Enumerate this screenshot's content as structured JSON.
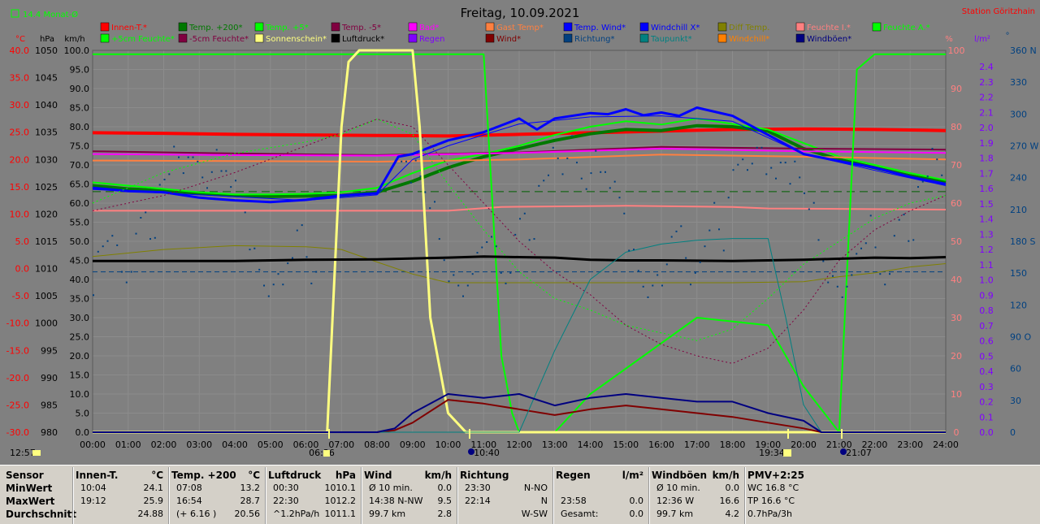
{
  "title": "Freitag, 10.09.2021",
  "station": "Station Göritzhain",
  "topleft": "14.4 Monat-Ø",
  "colors": {
    "innen": "#ff0000",
    "t200": "#007800",
    "t5": "#00ff00",
    "tm5": "#800040",
    "bad": "#ff00ff",
    "gast": "#ff8040",
    "tempwind": "#0000ff",
    "windchillx": "#0000ff",
    "difftemp": "#808000",
    "feuchtei": "#ff8080",
    "feuchtea": "#00ff00",
    "f5": "#00ff00",
    "fm5": "#800040",
    "sonne": "#ffff80",
    "luft": "#000000",
    "regen": "#8000ff",
    "wind": "#800000",
    "richtung": "#004080",
    "taupunkt": "#008080",
    "windchill": "#ff8000",
    "windboeen": "#000080"
  },
  "legend": [
    {
      "label": "Innen-T.*",
      "color": "#ff0000"
    },
    {
      "label": "Temp. +200*",
      "color": "#007800"
    },
    {
      "label": "Temp. +5*",
      "color": "#00ff00"
    },
    {
      "label": "Temp. -5*",
      "color": "#800040"
    },
    {
      "label": "Bad*",
      "color": "#ff00ff"
    },
    {
      "label": "Gast Temp*",
      "color": "#ff8040"
    },
    {
      "label": "Temp. Wind*",
      "color": "#0000ff"
    },
    {
      "label": "Windchill X*",
      "color": "#0000ff"
    },
    {
      "label": "Diff Temp.",
      "color": "#808000"
    },
    {
      "label": "Feuchte I.*",
      "color": "#ff8080"
    },
    {
      "label": "Feuchte A.*",
      "color": "#00ff00"
    },
    {
      "label": "+5cm Feuchte*",
      "color": "#00ff00"
    },
    {
      "label": "-5cm Feuchte*",
      "color": "#800040"
    },
    {
      "label": "Sonnenschein*",
      "color": "#ffff80"
    },
    {
      "label": "Luftdruck*",
      "color": "#000000"
    },
    {
      "label": "Regen",
      "color": "#8000ff"
    },
    {
      "label": "Wind*",
      "color": "#800000"
    },
    {
      "label": "Richtung*",
      "color": "#004080"
    },
    {
      "label": "Taupunkt*",
      "color": "#008080"
    },
    {
      "label": "Windchill*",
      "color": "#ff8000"
    },
    {
      "label": "Windböen*",
      "color": "#000080"
    }
  ],
  "axes": {
    "temp_unit": "°C",
    "hpa_unit": "hPa",
    "kmh_unit": "km/h",
    "pct_unit": "%",
    "lm2_unit": "l/m²",
    "deg_unit": "°",
    "temp_ticks": [
      "40.0",
      "35.0",
      "30.0",
      "25.0",
      "20.0",
      "15.0",
      "10.0",
      "5.0",
      "0.0",
      "-5.0",
      "-10.0",
      "-15.0",
      "-20.0",
      "-25.0",
      "-30.0"
    ],
    "hpa_ticks": [
      "1050",
      "1045",
      "1040",
      "1035",
      "1030",
      "1025",
      "1020",
      "1015",
      "1010",
      "1005",
      "1000",
      "995",
      "990",
      "985",
      "980"
    ],
    "kmh_ticks": [
      "100.0",
      "95.0",
      "90.0",
      "85.0",
      "80.0",
      "75.0",
      "70.0",
      "65.0",
      "60.0",
      "55.0",
      "50.0",
      "45.0",
      "40.0",
      "35.0",
      "30.0",
      "25.0",
      "20.0",
      "15.0",
      "10.0",
      "5.0",
      "0.0"
    ],
    "pct_ticks": [
      "100",
      "90",
      "80",
      "70",
      "60",
      "50",
      "40",
      "30",
      "20",
      "10",
      "0"
    ],
    "lm2_ticks": [
      "2.4",
      "2.3",
      "2.2",
      "2.1",
      "2.0",
      "1.9",
      "1.8",
      "1.7",
      "1.6",
      "1.5",
      "1.4",
      "1.3",
      "1.2",
      "1.1",
      "1.0",
      "0.9",
      "0.8",
      "0.7",
      "0.6",
      "0.5",
      "0.4",
      "0.3",
      "0.2",
      "0.1",
      "0.0"
    ],
    "deg_ticks": [
      "360 N",
      "330",
      "300",
      "270 W",
      "240",
      "210",
      "180 S",
      "150",
      "120",
      "90 O",
      "60",
      "30",
      "0"
    ],
    "time_ticks": [
      "00:00",
      "01:00",
      "02:00",
      "03:00",
      "04:00",
      "05:00",
      "06:00",
      "07:00",
      "08:00",
      "09:00",
      "10:00",
      "11:00",
      "12:00",
      "13:00",
      "14:00",
      "15:00",
      "16:00",
      "17:00",
      "18:00",
      "19:00",
      "20:00",
      "21:00",
      "22:00",
      "23:00",
      "24:00"
    ],
    "events": {
      "left": "12:57",
      "sunrise": "06:36",
      "moonrise": "10:40",
      "sunset": "19:34",
      "moonset": "21:07"
    }
  },
  "chart_data": {
    "type": "line",
    "title": "Freitag, 10.09.2021",
    "x_unit": "hour of day",
    "xlim": [
      0,
      24
    ],
    "ylim_pct": [
      0,
      100
    ],
    "series": [
      {
        "name": "Innen-T.*",
        "axis": "temp",
        "x": [
          0,
          2,
          4,
          6,
          8,
          10,
          12,
          14,
          16,
          18,
          20,
          22,
          24
        ],
        "y": [
          24.9,
          24.8,
          24.6,
          24.5,
          24.4,
          24.3,
          24.6,
          24.9,
          25.2,
          25.5,
          25.6,
          25.5,
          25.3
        ]
      },
      {
        "name": "Temp. +200*",
        "axis": "temp",
        "x": [
          0,
          1,
          2,
          3,
          4,
          5,
          6,
          7,
          8,
          9,
          10,
          11,
          12,
          13,
          14,
          15,
          16,
          17,
          18,
          19,
          20,
          21,
          22,
          23,
          24
        ],
        "y": [
          15.2,
          14.6,
          14.3,
          13.8,
          13.4,
          13.2,
          13.3,
          13.4,
          14,
          16,
          18.5,
          20.5,
          22,
          23.5,
          24.7,
          25.5,
          25.3,
          26.2,
          26,
          25.2,
          22,
          20,
          18.5,
          17,
          15.8
        ]
      },
      {
        "name": "Temp. +5*",
        "axis": "temp",
        "x": [
          0,
          1,
          2,
          3,
          4,
          5,
          6,
          7,
          8,
          9,
          10,
          11,
          12,
          13,
          14,
          15,
          16,
          17,
          18,
          19,
          20,
          21,
          22,
          23,
          24
        ],
        "y": [
          15.8,
          15.2,
          14.6,
          14,
          13.6,
          13.6,
          13.7,
          14,
          14.8,
          17.5,
          19.8,
          21,
          22.5,
          24.5,
          26,
          27,
          26.4,
          27.5,
          26.5,
          25.5,
          23,
          20.5,
          19,
          17.5,
          16.2
        ]
      },
      {
        "name": "Temp. -5*",
        "axis": "temp",
        "x": [
          0,
          4,
          8,
          12,
          16,
          20,
          24
        ],
        "y": [
          21.5,
          21.1,
          20.8,
          21.3,
          22.3,
          22,
          21.8
        ]
      },
      {
        "name": "Bad*",
        "axis": "temp",
        "x": [
          0,
          4,
          8,
          12,
          16,
          20,
          24
        ],
        "y": [
          21.0,
          20.8,
          20.7,
          21.2,
          22.0,
          21.5,
          21.2
        ]
      },
      {
        "name": "Gast Temp*",
        "axis": "temp",
        "x": [
          0,
          4,
          8,
          12,
          16,
          20,
          24
        ],
        "y": [
          19.8,
          19.7,
          19.6,
          20.0,
          20.9,
          20.5,
          20.0
        ]
      },
      {
        "name": "Temp. Wind*",
        "axis": "temp",
        "x": [
          0,
          1,
          2,
          3,
          4,
          5,
          6,
          7,
          8,
          8.6,
          9,
          10,
          11,
          12,
          12.5,
          13,
          14,
          14.5,
          15,
          15.5,
          16,
          16.5,
          17,
          18,
          19,
          20,
          21,
          22,
          23,
          24
        ],
        "y": [
          14.8,
          14.2,
          14,
          13,
          12.5,
          12.2,
          12.6,
          13.4,
          13.8,
          20.5,
          21,
          23.5,
          25,
          27.5,
          25.5,
          27.5,
          28.5,
          28.3,
          29.2,
          28.1,
          28.6,
          28,
          29.5,
          28,
          24.5,
          21,
          19.7,
          18.5,
          16.8,
          15.5
        ]
      },
      {
        "name": "Windchill X*",
        "axis": "temp",
        "x": [
          0,
          6,
          8,
          9,
          10,
          12,
          14,
          16,
          18,
          20,
          22,
          24
        ],
        "y": [
          14.5,
          12.5,
          13.5,
          20,
          22.5,
          26.5,
          27.8,
          28,
          27,
          21,
          18,
          15.2
        ]
      },
      {
        "name": "Diff Temp.",
        "axis": "temp",
        "x": [
          0,
          2,
          4,
          6,
          7,
          8,
          9,
          10,
          12,
          14,
          16,
          18,
          20,
          21,
          22,
          23,
          24
        ],
        "y": [
          2.2,
          3.5,
          4.2,
          4.0,
          3.5,
          1.2,
          -1,
          -2.6,
          -2.6,
          -2.6,
          -2.6,
          -2.6,
          -2.4,
          -1.5,
          -0.8,
          0.3,
          0.9
        ]
      },
      {
        "name": "Feuchte I.*",
        "axis": "pct",
        "x": [
          0,
          10,
          11.5,
          15,
          18,
          19,
          21,
          24
        ],
        "y": [
          58,
          58,
          59,
          59.3,
          59,
          58.6,
          58.5,
          58.3
        ]
      },
      {
        "name": "Feuchte A.*",
        "axis": "pct",
        "x": [
          0,
          10.9,
          11,
          11.5,
          11.8,
          12,
          13,
          14,
          17,
          19,
          20,
          21,
          21.5,
          22,
          24
        ],
        "y": [
          99,
          99,
          99,
          20,
          5,
          0,
          0,
          10,
          30,
          28,
          12,
          0,
          95,
          99,
          99
        ]
      },
      {
        "name": "+5cm Feuchte*",
        "axis": "pct",
        "x": [
          0,
          2,
          4,
          6,
          7,
          8,
          9,
          10,
          11,
          12,
          13,
          14,
          15,
          16,
          17,
          18,
          19,
          20,
          21,
          22,
          23,
          24
        ],
        "y": [
          60,
          68,
          73,
          76,
          78,
          82,
          78,
          65,
          53,
          42,
          35,
          32,
          28,
          26,
          24,
          27,
          35,
          44,
          50,
          56,
          60,
          62
        ]
      },
      {
        "name": "-5cm Feuchte*",
        "axis": "pct",
        "x": [
          0,
          2,
          4,
          6,
          8,
          9,
          10,
          11,
          12,
          13,
          14,
          15,
          16,
          17,
          18,
          19,
          20,
          21,
          22,
          23,
          24
        ],
        "y": [
          58,
          62,
          68,
          75,
          82,
          80,
          70,
          60,
          50,
          42,
          36,
          28,
          23,
          20,
          18,
          22,
          32,
          45,
          53,
          58,
          62
        ]
      },
      {
        "name": "Sonnenschein*",
        "axis": "pct",
        "x": [
          0,
          6.6,
          6.8,
          7.0,
          7.2,
          7.5,
          8,
          9,
          9.2,
          9.5,
          10,
          10.5,
          24
        ],
        "y": [
          0,
          0,
          40,
          80,
          97,
          100,
          100,
          100,
          80,
          30,
          5,
          0,
          0
        ]
      },
      {
        "name": "Luftdruck*",
        "axis": "hpa",
        "x": [
          0,
          2,
          4,
          6,
          8,
          10,
          11,
          12,
          13,
          14,
          15,
          16,
          18,
          20,
          22,
          23,
          24
        ],
        "y": [
          1011.4,
          1011.4,
          1011.4,
          1011.6,
          1011.7,
          1012.0,
          1012.2,
          1012.1,
          1012.0,
          1011.6,
          1011.5,
          1011.5,
          1011.4,
          1011.6,
          1012.0,
          1011.9,
          1012.1
        ]
      },
      {
        "name": "Wind*",
        "axis": "kmh",
        "x": [
          0,
          8,
          8.5,
          9,
          10,
          11,
          12,
          13,
          14,
          15,
          16,
          17,
          18,
          19,
          20,
          20.5,
          24
        ],
        "y": [
          0,
          0,
          0.5,
          2.5,
          8.5,
          7.5,
          6.0,
          4.5,
          6,
          7,
          6,
          5,
          4,
          2.5,
          1,
          0,
          0
        ]
      },
      {
        "name": "Richtung*",
        "axis": "deg",
        "x": [
          0,
          1,
          2,
          3,
          4,
          5,
          6,
          7,
          8,
          9,
          10,
          11,
          12,
          13,
          14,
          15,
          16,
          17,
          18,
          19,
          20,
          21,
          22,
          23,
          24
        ],
        "y": [
          140,
          170,
          180,
          170,
          160,
          150,
          160,
          190,
          200,
          180,
          160,
          260,
          270,
          250,
          260,
          260,
          250,
          250,
          260,
          160,
          170,
          150,
          140,
          130,
          130
        ]
      },
      {
        "name": "Taupunkt*",
        "axis": "temp",
        "x": [
          0,
          11.9,
          12,
          13,
          14,
          15,
          16,
          17,
          18,
          19,
          19.5,
          20,
          20.5,
          24
        ],
        "y": [
          -30,
          -30,
          -30,
          -15,
          -2,
          3,
          4.5,
          5.2,
          5.5,
          5.5,
          -9,
          -25,
          -30,
          -30
        ]
      },
      {
        "name": "Windchill*",
        "axis": "temp",
        "x": [
          0,
          24
        ],
        "y": [
          20.0,
          20.0
        ]
      },
      {
        "name": "Windböen*",
        "axis": "kmh",
        "x": [
          0,
          8,
          8.5,
          9,
          10,
          11,
          12,
          13,
          14,
          15,
          16,
          17,
          18,
          19,
          20,
          20.5,
          24
        ],
        "y": [
          0,
          0,
          1,
          5,
          10,
          9,
          10,
          7,
          9,
          10,
          9,
          8,
          8,
          5,
          3,
          0,
          0
        ]
      }
    ],
    "wind_direction_scatter_deg": [
      140,
      165,
      175,
      185,
      195,
      170,
      150,
      145,
      160,
      180,
      200,
      210,
      190,
      175,
      230,
      240,
      250,
      260,
      255,
      245,
      265,
      270,
      250,
      240,
      235,
      255,
      260,
      245,
      250,
      240,
      230,
      220,
      210,
      180,
      165,
      150,
      140,
      135,
      130,
      145
    ]
  },
  "table": {
    "columns": [
      {
        "head": "Sensor",
        "rows": [
          "MinWert",
          "MaxWert",
          "Durchschnitt"
        ]
      },
      {
        "head": "Innen-T.",
        "unit": "°C",
        "rows": [
          [
            "10:04",
            "24.1"
          ],
          [
            "19:12",
            "25.9"
          ],
          [
            "",
            "24.88"
          ]
        ]
      },
      {
        "head": "Temp. +200",
        "unit": "°C",
        "rows": [
          [
            "07:08",
            "13.2"
          ],
          [
            "16:54",
            "28.7"
          ],
          [
            "(+ 6.16 )",
            "20.56"
          ]
        ]
      },
      {
        "head": "Luftdruck",
        "unit": "hPa",
        "rows": [
          [
            "00:30",
            "1010.1"
          ],
          [
            "22:30",
            "1012.2"
          ],
          [
            "^1.2hPa/h",
            "1011.1"
          ]
        ]
      },
      {
        "head": "Wind",
        "unit": "km/h",
        "rows": [
          [
            "Ø 10 min.",
            "0.0"
          ],
          [
            "14:38  N-NW",
            "9.5"
          ],
          [
            "99.7 km",
            "2.8"
          ]
        ]
      },
      {
        "head": "Richtung",
        "rows": [
          [
            "23:30",
            "N-NO"
          ],
          [
            "22:14",
            "N"
          ],
          [
            "",
            "W-SW"
          ]
        ]
      },
      {
        "head": "Regen",
        "unit": "l/m²",
        "rows": [
          [
            "",
            ""
          ],
          [
            "23:58",
            "0.0"
          ],
          [
            "Gesamt:",
            "0.0"
          ]
        ]
      },
      {
        "head": "Windböen",
        "unit": "km/h",
        "rows": [
          [
            "Ø 10 min.",
            "0.0"
          ],
          [
            "12:36  W",
            "16.6"
          ],
          [
            "99.7 km",
            "4.2"
          ]
        ]
      },
      {
        "head": "PMV+2:25",
        "rows": [
          "WC 16.8 °C",
          "TP 16.6 °C",
          "0.7hPa/3h"
        ]
      }
    ]
  }
}
